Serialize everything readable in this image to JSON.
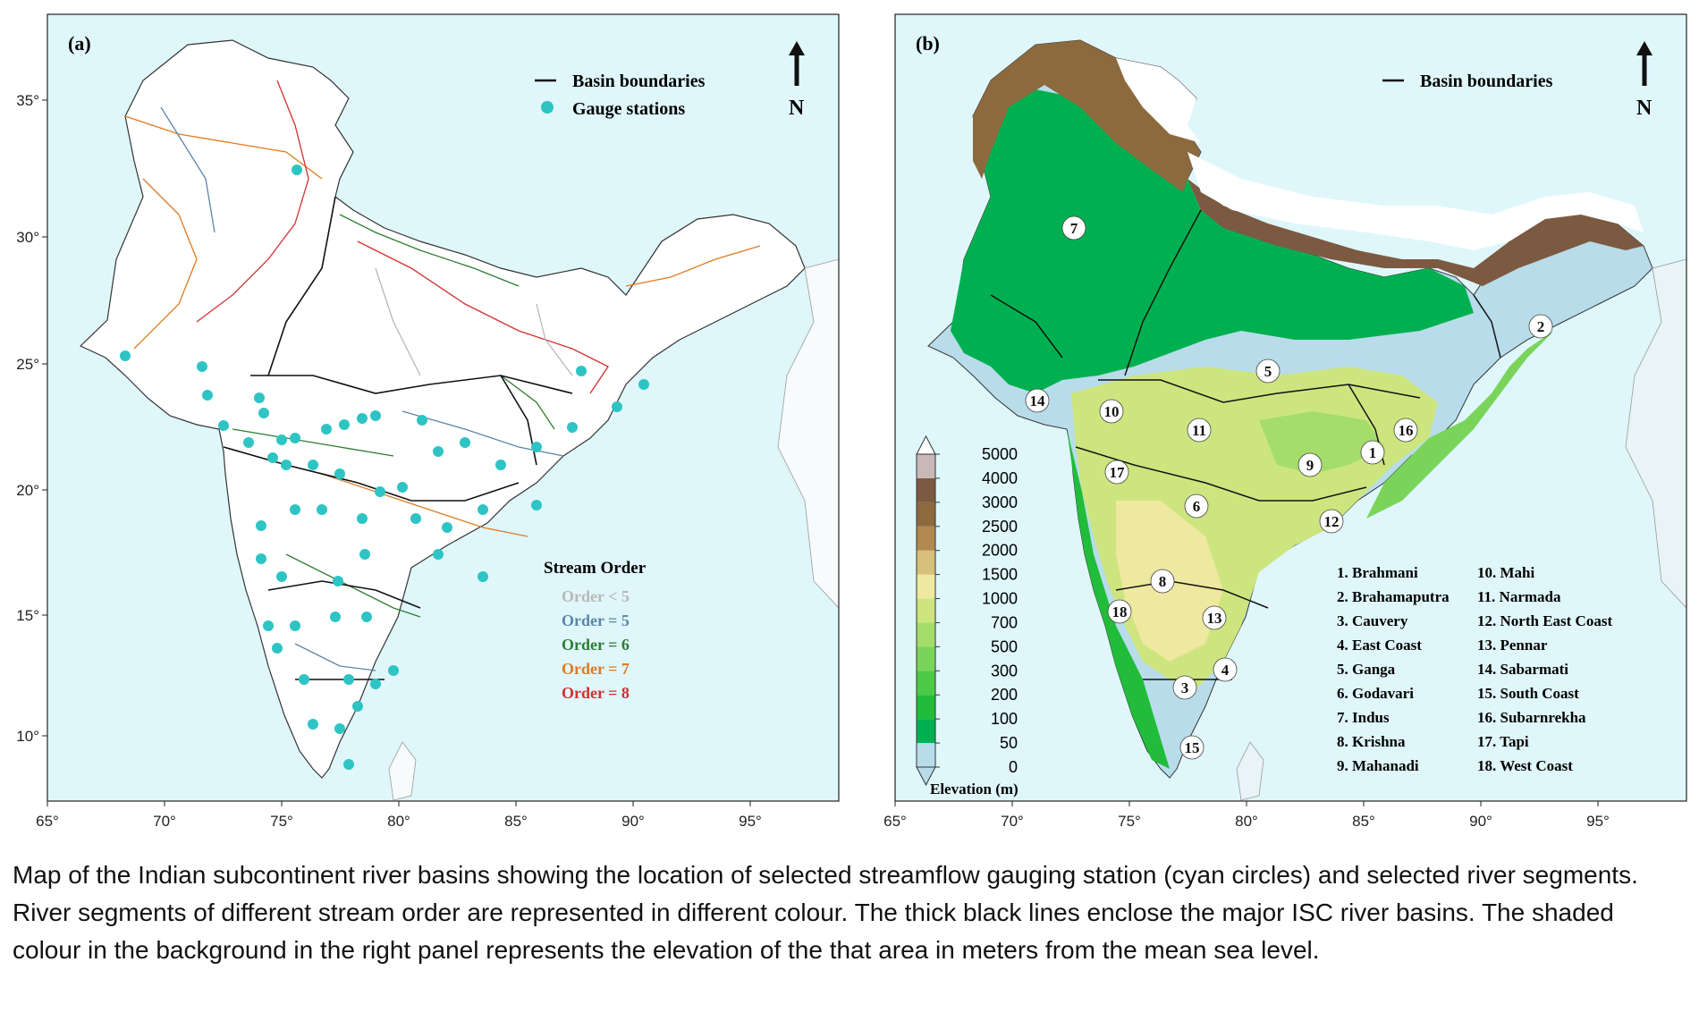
{
  "panel_a": {
    "label": "(a)",
    "legend_boundaries": "Basin boundaries",
    "legend_gauges": "Gauge stations",
    "north": "N",
    "stream_order_title": "Stream Order",
    "stream_orders": [
      {
        "label": "Order < 5",
        "color": "#b8b8b8"
      },
      {
        "label": "Order = 5",
        "color": "#5b86a8"
      },
      {
        "label": "Order = 6",
        "color": "#2e7d32"
      },
      {
        "label": "Order = 7",
        "color": "#e07a1f"
      },
      {
        "label": "Order = 8",
        "color": "#d32f2f"
      }
    ]
  },
  "panel_b": {
    "label": "(b)",
    "legend_boundaries": "Basin boundaries",
    "north": "N",
    "colorbar_title": "Elevation (m)",
    "colorbar_ticks": [
      "0",
      "50",
      "100",
      "200",
      "300",
      "500",
      "700",
      "1000",
      "1500",
      "2000",
      "2500",
      "3000",
      "4000",
      "5000"
    ],
    "colorbar_colors": [
      "#b8dcea",
      "#00b050",
      "#21bd3a",
      "#4cca45",
      "#7ad45a",
      "#a4dd6a",
      "#cde57e",
      "#efe8a0",
      "#d6c07a",
      "#b08950",
      "#8c6a3e",
      "#7c5a42",
      "#c9b8b8",
      "#ffffff"
    ],
    "basin_numbers": [
      "7",
      "2",
      "5",
      "14",
      "10",
      "11",
      "16",
      "1",
      "9",
      "17",
      "6",
      "12",
      "8",
      "18",
      "13",
      "4",
      "3",
      "15"
    ],
    "basin_list_left": [
      "1. Brahmani",
      "2. Brahamaputra",
      "3. Cauvery",
      "4. East Coast",
      "5. Ganga",
      "6. Godavari",
      "7. Indus",
      "8. Krishna",
      "9. Mahanadi"
    ],
    "basin_list_right": [
      "10. Mahi",
      "11. Narmada",
      "12. North East Coast",
      "13. Pennar",
      "14. Sabarmati",
      "15. South Coast",
      "16. Subarnrekha",
      "17. Tapi",
      "18. West Coast"
    ]
  },
  "axes": {
    "lon_ticks": [
      "65°",
      "70°",
      "75°",
      "80°",
      "85°",
      "90°",
      "95°"
    ],
    "lat_ticks": [
      "35°",
      "30°",
      "25°",
      "20°",
      "15°",
      "10°"
    ]
  },
  "colors": {
    "sea": "#dff7fb",
    "land_a": "#ffffff",
    "gauge": "#2ec4c4",
    "plains": "#00b050"
  },
  "caption": "Map of the Indian subcontinent river basins showing the location of selected streamflow gauging station (cyan circles) and selected river segments. River segments of different stream order are represented in different colour. The thick black lines enclose the major ISC river basins. The shaded colour in the background in the right panel represents the elevation of the that area in meters from the mean sea level."
}
